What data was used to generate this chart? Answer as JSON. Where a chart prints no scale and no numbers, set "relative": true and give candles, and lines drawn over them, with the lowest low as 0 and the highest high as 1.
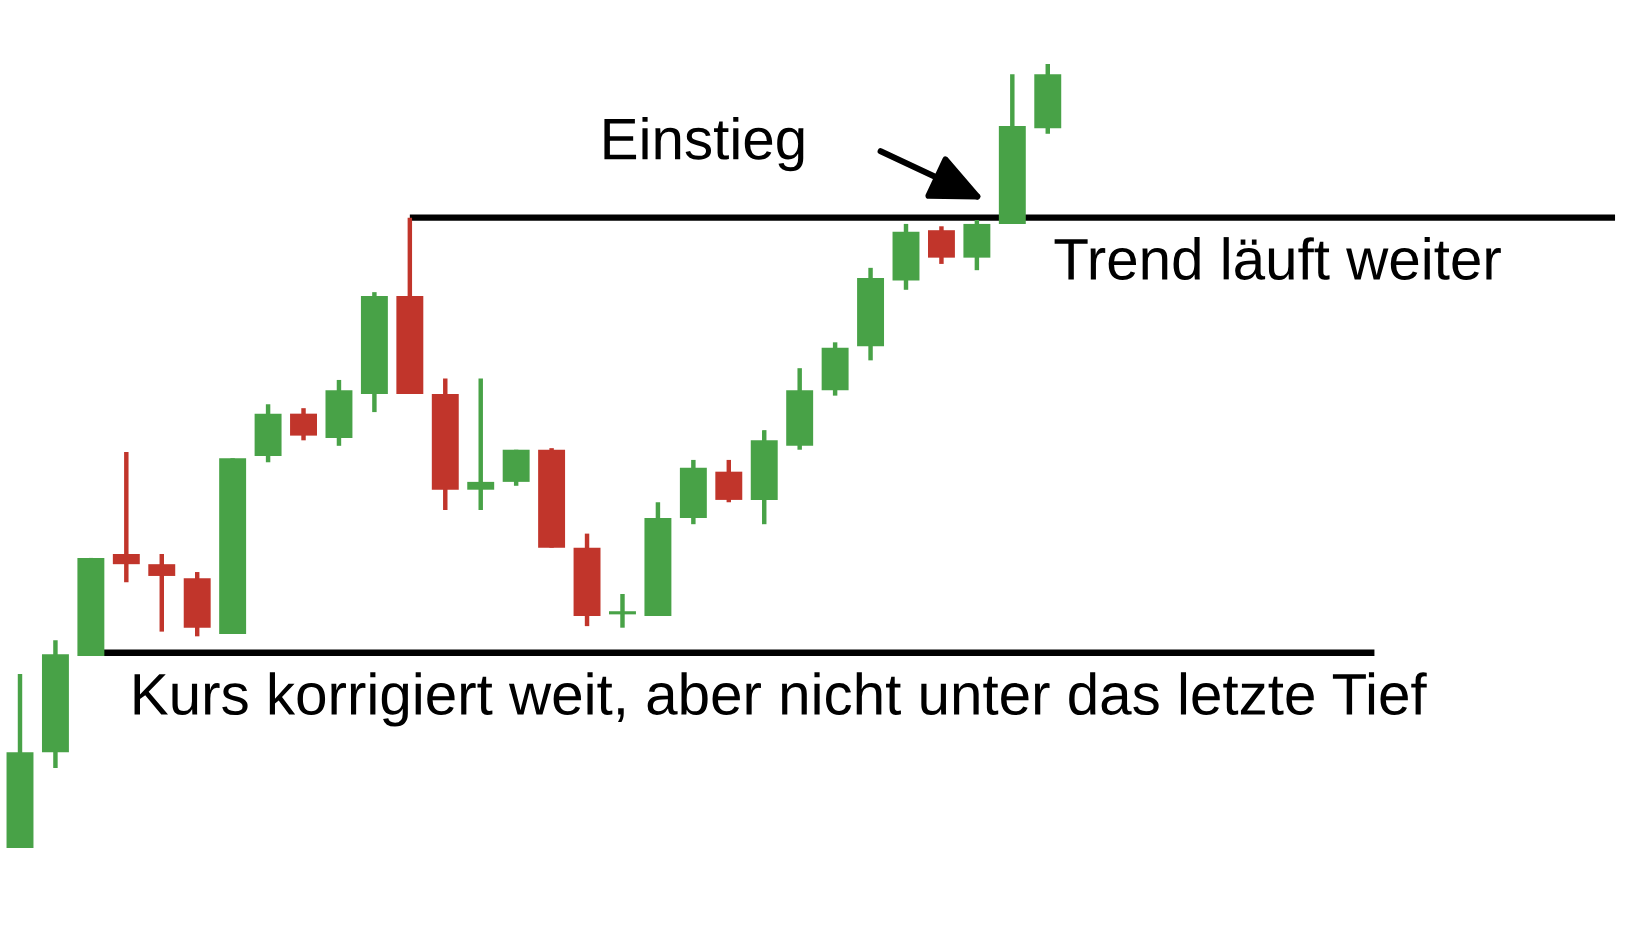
{
  "chart_data": {
    "type": "candlestick",
    "relative": true,
    "categories": [
      null,
      null,
      null,
      null,
      null,
      null,
      null,
      null,
      null,
      null,
      null,
      null,
      null,
      null,
      null,
      null,
      null,
      null,
      null,
      null,
      null,
      null,
      null,
      null,
      null,
      null,
      null,
      null,
      null,
      null
    ],
    "ohlc": [
      [
        0.0,
        0.222,
        0.0,
        0.122
      ],
      [
        0.122,
        0.265,
        0.102,
        0.247
      ],
      [
        0.245,
        0.37,
        0.245,
        0.37
      ],
      [
        0.375,
        0.505,
        0.339,
        0.362
      ],
      [
        0.362,
        0.375,
        0.276,
        0.347
      ],
      [
        0.344,
        0.352,
        0.27,
        0.281
      ],
      [
        0.273,
        0.497,
        0.273,
        0.497
      ],
      [
        0.5,
        0.566,
        0.492,
        0.554
      ],
      [
        0.554,
        0.561,
        0.52,
        0.526
      ],
      [
        0.523,
        0.597,
        0.513,
        0.584
      ],
      [
        0.579,
        0.709,
        0.556,
        0.704
      ],
      [
        0.704,
        0.804,
        0.579,
        0.579
      ],
      [
        0.579,
        0.599,
        0.431,
        0.457
      ],
      [
        0.457,
        0.599,
        0.431,
        0.467
      ],
      [
        0.467,
        0.508,
        0.462,
        0.508
      ],
      [
        0.508,
        0.51,
        0.383,
        0.383
      ],
      [
        0.383,
        0.401,
        0.283,
        0.296
      ],
      [
        0.298,
        0.324,
        0.281,
        0.302
      ],
      [
        0.296,
        0.441,
        0.296,
        0.421
      ],
      [
        0.421,
        0.495,
        0.413,
        0.485
      ],
      [
        0.48,
        0.495,
        0.441,
        0.444
      ],
      [
        0.444,
        0.533,
        0.413,
        0.52
      ],
      [
        0.513,
        0.612,
        0.508,
        0.584
      ],
      [
        0.584,
        0.645,
        0.577,
        0.638
      ],
      [
        0.64,
        0.74,
        0.622,
        0.727
      ],
      [
        0.724,
        0.796,
        0.712,
        0.786
      ],
      [
        0.788,
        0.793,
        0.745,
        0.753
      ],
      [
        0.753,
        0.801,
        0.737,
        0.796
      ],
      [
        0.796,
        0.987,
        0.796,
        0.921
      ],
      [
        0.918,
        1.0,
        0.911,
        0.987
      ]
    ],
    "colors": [
      "#48a247",
      "#48a247",
      "#48a247",
      "#c1352b",
      "#c1352b",
      "#c1352b",
      "#48a247",
      "#48a247",
      "#c1352b",
      "#48a247",
      "#48a247",
      "#c1352b",
      "#c1352b",
      "#48a247",
      "#48a247",
      "#c1352b",
      "#c1352b",
      "#48a247",
      "#48a247",
      "#48a247",
      "#c1352b",
      "#48a247",
      "#48a247",
      "#48a247",
      "#48a247",
      "#48a247",
      "#c1352b",
      "#48a247",
      "#48a247",
      "#48a247"
    ],
    "ref_lines": [
      {
        "axis": "y",
        "value": 0.804,
        "label": "Trend läuft weiter",
        "color": "#000000"
      },
      {
        "axis": "y",
        "value": 0.249,
        "label": "Kurs korrigiert weit, aber nicht unter das letzte Tief",
        "color": "#000000"
      }
    ],
    "annotations": [
      "Einstieg"
    ]
  }
}
